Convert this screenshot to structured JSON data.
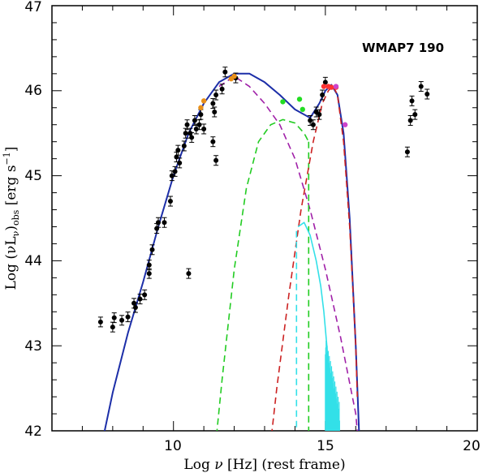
{
  "chart_data": {
    "type": "scatter",
    "title": "",
    "annotation": "WMAP7 190",
    "xlabel_parts": [
      "Log ",
      "ν",
      " [Hz] (rest frame)"
    ],
    "ylabel_parts": [
      "Log ",
      "(νL",
      "ν",
      ")",
      "obs",
      " [erg s",
      "−1",
      "]"
    ],
    "xlim": [
      6,
      20
    ],
    "ylim": [
      42,
      47
    ],
    "x_ticks_labeled": [
      10,
      15,
      20
    ],
    "y_ticks_labeled": [
      42,
      43,
      44,
      45,
      46,
      47
    ],
    "x_tick_labels": [
      "10",
      "15",
      "20"
    ],
    "y_tick_labels": [
      "42",
      "43",
      "44",
      "45",
      "46",
      "47"
    ],
    "colors": {
      "observed": "#000000",
      "total_model": "#1c2ea8",
      "synchrotron": "#a020a8",
      "torus": "#22cc22",
      "disk": "#cc2222",
      "xray_spectrum": "#33e0e8",
      "optical": "#ff3333",
      "uv": "#cc44cc",
      "ir_model_points": "#e8901a",
      "green_points": "#22dd22"
    },
    "series": [
      {
        "name": "observed",
        "kind": "points",
        "points": [
          [
            7.6,
            43.28
          ],
          [
            8.0,
            43.22
          ],
          [
            8.05,
            43.33
          ],
          [
            8.3,
            43.3
          ],
          [
            8.5,
            43.34
          ],
          [
            8.7,
            43.5
          ],
          [
            8.75,
            43.45
          ],
          [
            8.9,
            43.55
          ],
          [
            9.05,
            43.6
          ],
          [
            9.2,
            43.85
          ],
          [
            9.2,
            43.95
          ],
          [
            9.3,
            44.13
          ],
          [
            9.45,
            44.38
          ],
          [
            9.5,
            44.45
          ],
          [
            9.7,
            44.45
          ],
          [
            9.9,
            44.7
          ],
          [
            9.95,
            45.0
          ],
          [
            10.05,
            45.05
          ],
          [
            10.1,
            45.22
          ],
          [
            10.15,
            45.3
          ],
          [
            10.2,
            45.15
          ],
          [
            10.35,
            45.35
          ],
          [
            10.4,
            45.5
          ],
          [
            10.45,
            45.6
          ],
          [
            10.55,
            45.5
          ],
          [
            10.6,
            45.45
          ],
          [
            10.7,
            45.65
          ],
          [
            10.75,
            45.55
          ],
          [
            10.85,
            45.6
          ],
          [
            10.9,
            45.72
          ],
          [
            11.0,
            45.55
          ],
          [
            11.3,
            45.85
          ],
          [
            11.35,
            45.75
          ],
          [
            11.4,
            45.95
          ],
          [
            11.6,
            46.02
          ],
          [
            11.7,
            46.22
          ],
          [
            11.3,
            45.4
          ],
          [
            11.4,
            45.18
          ],
          [
            10.5,
            43.85
          ],
          [
            12.05,
            46.15
          ],
          [
            14.5,
            45.65
          ],
          [
            14.6,
            45.6
          ],
          [
            14.7,
            45.75
          ],
          [
            14.8,
            45.72
          ],
          [
            14.9,
            45.95
          ],
          [
            15.0,
            46.1
          ],
          [
            17.7,
            45.28
          ],
          [
            17.8,
            45.65
          ],
          [
            17.85,
            45.88
          ],
          [
            17.95,
            45.72
          ],
          [
            18.15,
            46.05
          ],
          [
            18.35,
            45.96
          ]
        ]
      },
      {
        "name": "ir_model_points",
        "kind": "points",
        "points": [
          [
            10.9,
            45.8
          ],
          [
            11.0,
            45.88
          ],
          [
            11.9,
            46.14
          ],
          [
            12.0,
            46.17
          ]
        ]
      },
      {
        "name": "green_points",
        "kind": "points",
        "points": [
          [
            13.6,
            45.87
          ],
          [
            14.15,
            45.9
          ],
          [
            14.25,
            45.78
          ]
        ]
      },
      {
        "name": "optical",
        "kind": "points",
        "points": [
          [
            15.1,
            46.05
          ],
          [
            15.2,
            46.04
          ],
          [
            15.35,
            46.04
          ],
          [
            14.95,
            46.05
          ]
        ]
      },
      {
        "name": "uv",
        "kind": "points",
        "points": [
          [
            15.35,
            46.05
          ],
          [
            15.65,
            45.6
          ]
        ]
      },
      {
        "name": "total_model",
        "kind": "line",
        "points": [
          [
            7.5,
            41.6
          ],
          [
            8.0,
            42.45
          ],
          [
            8.5,
            43.15
          ],
          [
            9.0,
            43.75
          ],
          [
            9.5,
            44.4
          ],
          [
            10.0,
            45.0
          ],
          [
            10.5,
            45.5
          ],
          [
            11.0,
            45.85
          ],
          [
            11.5,
            46.1
          ],
          [
            12.0,
            46.2
          ],
          [
            12.5,
            46.2
          ],
          [
            13.0,
            46.1
          ],
          [
            13.5,
            45.95
          ],
          [
            14.0,
            45.78
          ],
          [
            14.5,
            45.68
          ],
          [
            14.8,
            45.85
          ],
          [
            15.0,
            46.0
          ],
          [
            15.2,
            46.07
          ],
          [
            15.4,
            45.95
          ],
          [
            15.6,
            45.5
          ],
          [
            15.8,
            44.5
          ],
          [
            16.0,
            43.0
          ],
          [
            16.15,
            41.6
          ]
        ]
      },
      {
        "name": "synchrotron",
        "kind": "dashed",
        "points": [
          [
            11.5,
            46.05
          ],
          [
            12.0,
            46.17
          ],
          [
            12.5,
            46.05
          ],
          [
            13.0,
            45.85
          ],
          [
            13.5,
            45.6
          ],
          [
            14.0,
            45.2
          ],
          [
            14.5,
            44.6
          ],
          [
            15.0,
            43.9
          ],
          [
            15.5,
            43.1
          ],
          [
            16.0,
            42.2
          ],
          [
            16.1,
            41.8
          ]
        ]
      },
      {
        "name": "torus",
        "kind": "dashed",
        "points": [
          [
            11.35,
            41.7
          ],
          [
            11.6,
            42.6
          ],
          [
            12.0,
            43.9
          ],
          [
            12.4,
            44.85
          ],
          [
            12.8,
            45.4
          ],
          [
            13.2,
            45.6
          ],
          [
            13.6,
            45.66
          ],
          [
            14.0,
            45.62
          ],
          [
            14.3,
            45.5
          ],
          [
            14.45,
            45.4
          ]
        ]
      },
      {
        "name": "torus_cutoff",
        "kind": "dashed",
        "points": [
          [
            14.45,
            45.4
          ],
          [
            14.45,
            41.7
          ]
        ]
      },
      {
        "name": "disk",
        "kind": "dashed",
        "points": [
          [
            13.15,
            41.7
          ],
          [
            13.4,
            42.5
          ],
          [
            13.8,
            43.6
          ],
          [
            14.2,
            44.6
          ],
          [
            14.6,
            45.4
          ],
          [
            14.9,
            45.85
          ],
          [
            15.1,
            46.0
          ],
          [
            15.25,
            46.06
          ],
          [
            15.4,
            45.95
          ],
          [
            15.6,
            45.4
          ],
          [
            15.8,
            44.4
          ],
          [
            16.0,
            43.0
          ],
          [
            16.05,
            42.4
          ]
        ]
      },
      {
        "name": "xray_spectrum",
        "kind": "line",
        "points": [
          [
            14.1,
            44.4
          ],
          [
            14.3,
            44.45
          ],
          [
            14.5,
            44.3
          ],
          [
            14.7,
            44.0
          ],
          [
            14.85,
            43.7
          ],
          [
            14.95,
            43.4
          ],
          [
            15.05,
            43.0
          ],
          [
            15.1,
            42.7
          ],
          [
            15.15,
            42.4
          ],
          [
            15.2,
            42.1
          ]
        ]
      },
      {
        "name": "xray_dashed",
        "kind": "dashed",
        "points": [
          [
            14.05,
            44.35
          ],
          [
            14.05,
            41.7
          ]
        ]
      }
    ]
  }
}
